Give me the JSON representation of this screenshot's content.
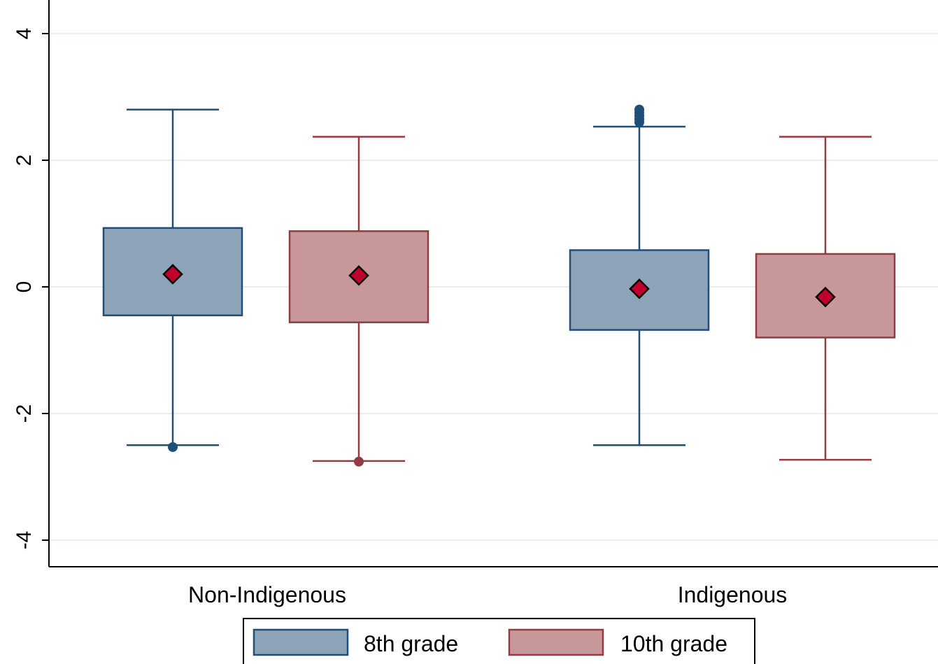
{
  "chart_data": {
    "type": "box",
    "categories": [
      "Non-Indigenous",
      "Indigenous"
    ],
    "y_ticks": [
      "4",
      "2",
      "0",
      "-2",
      "-4"
    ],
    "ylim": [
      -4.4,
      4.4
    ],
    "grid": true,
    "legend_position": "bottom",
    "series": [
      {
        "name": "8th grade",
        "fill": "#8da4b8",
        "stroke": "#1f4e79",
        "boxes": [
          {
            "category": "Non-Indigenous",
            "whisker_low": -2.5,
            "q1": -0.45,
            "q3": 0.93,
            "whisker_high": 2.8,
            "mean": 0.2,
            "outliers": [
              -2.53
            ]
          },
          {
            "category": "Indigenous",
            "whisker_low": -2.5,
            "q1": -0.68,
            "q3": 0.58,
            "whisker_high": 2.53,
            "mean": -0.03,
            "outliers": [
              2.6,
              2.65,
              2.7,
              2.75,
              2.8
            ]
          }
        ]
      },
      {
        "name": "10th grade",
        "fill": "#c8979a",
        "stroke": "#943b42",
        "boxes": [
          {
            "category": "Non-Indigenous",
            "whisker_low": -2.75,
            "q1": -0.56,
            "q3": 0.88,
            "whisker_high": 2.37,
            "mean": 0.18,
            "outliers": [
              -2.76
            ]
          },
          {
            "category": "Indigenous",
            "whisker_low": -2.73,
            "q1": -0.8,
            "q3": 0.52,
            "whisker_high": 2.37,
            "mean": -0.16,
            "outliers": []
          }
        ]
      }
    ],
    "mean_marker_color": "#c0002a",
    "grid_color": "#e6eef2"
  }
}
